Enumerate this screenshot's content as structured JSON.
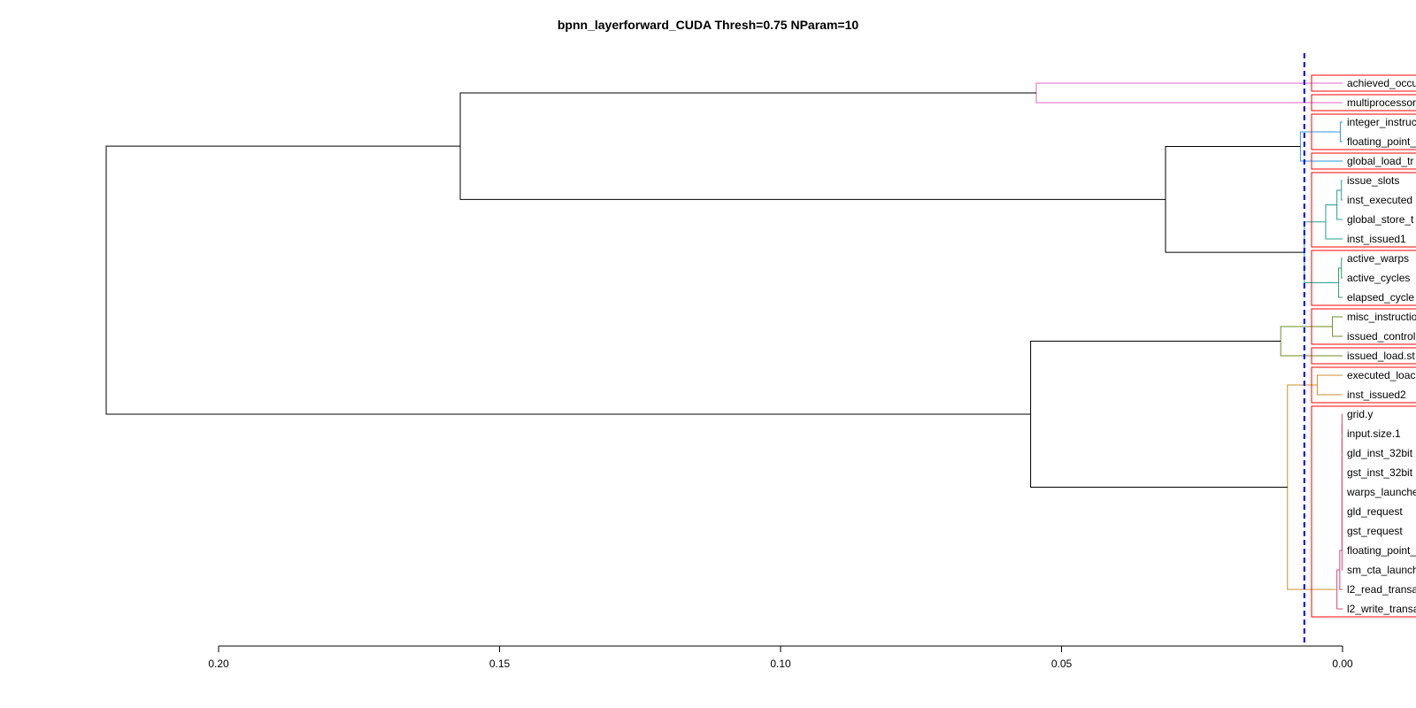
{
  "title": "bpnn_layerforward_CUDA Thresh=0.75 NParam=10",
  "colors": {
    "cut_line": "#0000ff",
    "cluster_box": "#ff0000",
    "upper_links": "#000000",
    "magenta": "#e066c8",
    "blue": "#3399dd",
    "teal": "#2a9d8f",
    "green": "#2e9e5b",
    "olive": "#6b8e23",
    "orange": "#c8902a",
    "pink": "#e0447a"
  },
  "chart_data": {
    "type": "dendrogram",
    "orientation": "horizontal",
    "title": "bpnn_layerforward_CUDA Thresh=0.75 NParam=10",
    "x_ticks": [
      "0.20",
      "0.15",
      "0.10",
      "0.05",
      "0.00"
    ],
    "xlim": [
      0.2,
      0.0
    ],
    "cut_height": 0.0068,
    "leaves": [
      "achieved_occu",
      "multiprocessor",
      "integer_instruc",
      "floating_point_",
      "global_load_tr",
      "issue_slots",
      "inst_executed",
      "global_store_t",
      "inst_issued1",
      "active_warps",
      "active_cycles",
      "elapsed_cycle",
      "misc_instructio",
      "issued_control",
      "issued_load.st",
      "executed_loac",
      "inst_issued2",
      "grid.y",
      "input.size.1",
      "gld_inst_32bit",
      "gst_inst_32bit",
      "warps_launche",
      "gld_request",
      "gst_request",
      "floating_point_",
      "sm_cta_launch",
      "l2_read_transa",
      "l2_write_transa"
    ],
    "merges": [
      {
        "a": "L0",
        "b": "L1",
        "h": 0.0545,
        "id": "m1",
        "color": "magenta"
      },
      {
        "a": "L2",
        "b": "L3",
        "h": 0.0004,
        "id": "m2",
        "color": "blue"
      },
      {
        "a": "m2",
        "b": "L4",
        "h": 0.0075,
        "id": "m3",
        "color": "blue"
      },
      {
        "a": "L5",
        "b": "L6",
        "h": 0.0002,
        "id": "m4",
        "color": "teal"
      },
      {
        "a": "m4",
        "b": "L7",
        "h": 0.001,
        "id": "m5",
        "color": "teal"
      },
      {
        "a": "m5",
        "b": "L8",
        "h": 0.003,
        "id": "m6",
        "color": "teal"
      },
      {
        "a": "L9",
        "b": "L10",
        "h": 0.0002,
        "id": "m7",
        "color": "green"
      },
      {
        "a": "m7",
        "b": "L11",
        "h": 0.0007,
        "id": "m8",
        "color": "green"
      },
      {
        "a": "m6",
        "b": "m8",
        "h": 0.0068,
        "id": "m9",
        "color": "teal"
      },
      {
        "a": "m3",
        "b": "m9",
        "h": 0.0315,
        "id": "m10",
        "color": "upper_links"
      },
      {
        "a": "m1",
        "b": "m10",
        "h": 0.157,
        "id": "m11",
        "color": "upper_links"
      },
      {
        "a": "L12",
        "b": "L13",
        "h": 0.0018,
        "id": "m12",
        "color": "olive"
      },
      {
        "a": "m12",
        "b": "L14",
        "h": 0.011,
        "id": "m13",
        "color": "olive"
      },
      {
        "a": "L15",
        "b": "L16",
        "h": 0.0045,
        "id": "m14",
        "color": "orange"
      },
      {
        "a": "L17",
        "b": "L18",
        "h": 0.0001,
        "id": "m15",
        "color": "pink"
      },
      {
        "a": "m15",
        "b": "L19",
        "h": 0.0001,
        "id": "m16",
        "color": "pink"
      },
      {
        "a": "m16",
        "b": "L20",
        "h": 0.0001,
        "id": "m17",
        "color": "pink"
      },
      {
        "a": "m17",
        "b": "L21",
        "h": 0.0001,
        "id": "m18",
        "color": "pink"
      },
      {
        "a": "m18",
        "b": "L22",
        "h": 0.0001,
        "id": "m19",
        "color": "pink"
      },
      {
        "a": "m19",
        "b": "L23",
        "h": 0.0001,
        "id": "m20",
        "color": "pink"
      },
      {
        "a": "m20",
        "b": "L24",
        "h": 0.0001,
        "id": "m21",
        "color": "pink"
      },
      {
        "a": "m21",
        "b": "L25",
        "h": 0.0001,
        "id": "m22",
        "color": "pink"
      },
      {
        "a": "m22",
        "b": "L26",
        "h": 0.0005,
        "id": "m23",
        "color": "pink"
      },
      {
        "a": "m23",
        "b": "L27",
        "h": 0.001,
        "id": "m24",
        "color": "pink"
      },
      {
        "a": "m14",
        "b": "m24",
        "h": 0.0098,
        "id": "m25",
        "color": "orange"
      },
      {
        "a": "m13",
        "b": "m25",
        "h": 0.0555,
        "id": "m26",
        "color": "upper_links"
      },
      {
        "a": "m11",
        "b": "m26",
        "h": 0.22,
        "id": "m27",
        "color": "upper_links"
      }
    ],
    "clusters": [
      [
        0,
        0
      ],
      [
        1,
        1
      ],
      [
        2,
        3
      ],
      [
        4,
        4
      ],
      [
        5,
        8
      ],
      [
        9,
        11
      ],
      [
        12,
        13
      ],
      [
        14,
        14
      ],
      [
        15,
        16
      ],
      [
        17,
        27
      ]
    ]
  }
}
